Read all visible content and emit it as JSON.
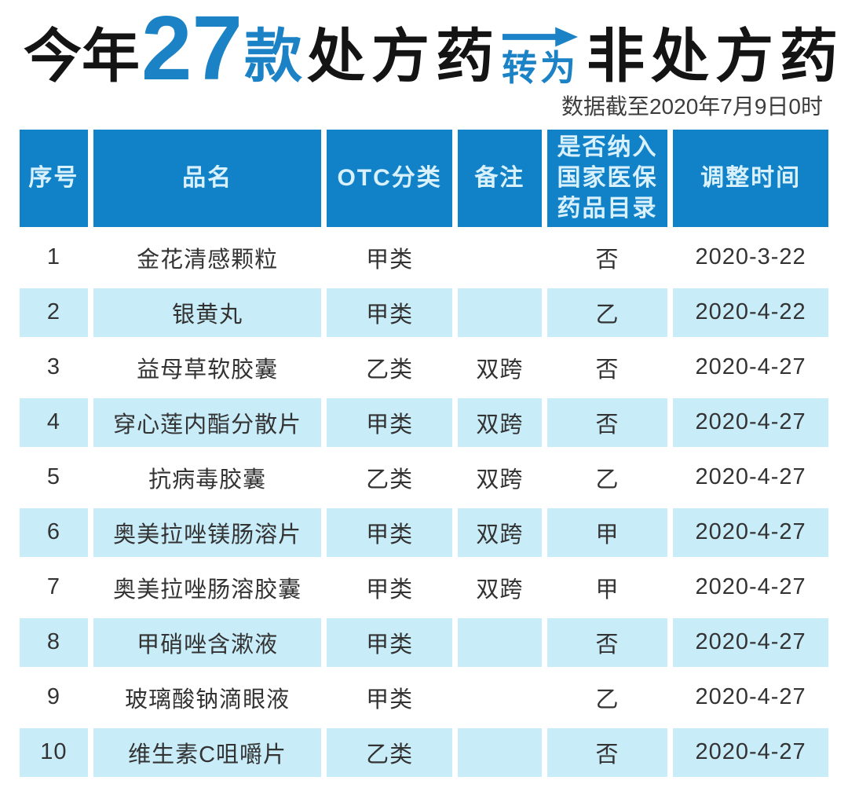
{
  "title": {
    "prefix": "今年",
    "count": "27",
    "count_unit": "款",
    "from_label": "处方药",
    "arrow_label": "转为",
    "to_label": "非处方药"
  },
  "subtitle": "数据截至2020年7月9日0时",
  "colors": {
    "accent_blue": "#1c82c6",
    "header_bg": "#1182c8",
    "header_text": "#d9f1fc",
    "row_alt_bg": "#c9ecf9",
    "body_text": "#333333"
  },
  "chart_data": {
    "type": "table",
    "title": "今年27款处方药转为非处方药",
    "subtitle": "数据截至2020年7月9日0时",
    "columns": [
      "序号",
      "品名",
      "OTC分类",
      "备注",
      "是否纳入\n国家医保\n药品目录",
      "调整时间"
    ],
    "rows": [
      [
        "1",
        "金花清感颗粒",
        "甲类",
        "",
        "否",
        "2020-3-22"
      ],
      [
        "2",
        "银黄丸",
        "甲类",
        "",
        "乙",
        "2020-4-22"
      ],
      [
        "3",
        "益母草软胶囊",
        "乙类",
        "双跨",
        "否",
        "2020-4-27"
      ],
      [
        "4",
        "穿心莲内酯分散片",
        "甲类",
        "双跨",
        "否",
        "2020-4-27"
      ],
      [
        "5",
        "抗病毒胶囊",
        "乙类",
        "双跨",
        "乙",
        "2020-4-27"
      ],
      [
        "6",
        "奥美拉唑镁肠溶片",
        "甲类",
        "双跨",
        "甲",
        "2020-4-27"
      ],
      [
        "7",
        "奥美拉唑肠溶胶囊",
        "甲类",
        "双跨",
        "甲",
        "2020-4-27"
      ],
      [
        "8",
        "甲硝唑含漱液",
        "甲类",
        "",
        "否",
        "2020-4-27"
      ],
      [
        "9",
        "玻璃酸钠滴眼液",
        "甲类",
        "",
        "乙",
        "2020-4-27"
      ],
      [
        "10",
        "维生素C咀嚼片",
        "乙类",
        "",
        "否",
        "2020-4-27"
      ]
    ]
  }
}
